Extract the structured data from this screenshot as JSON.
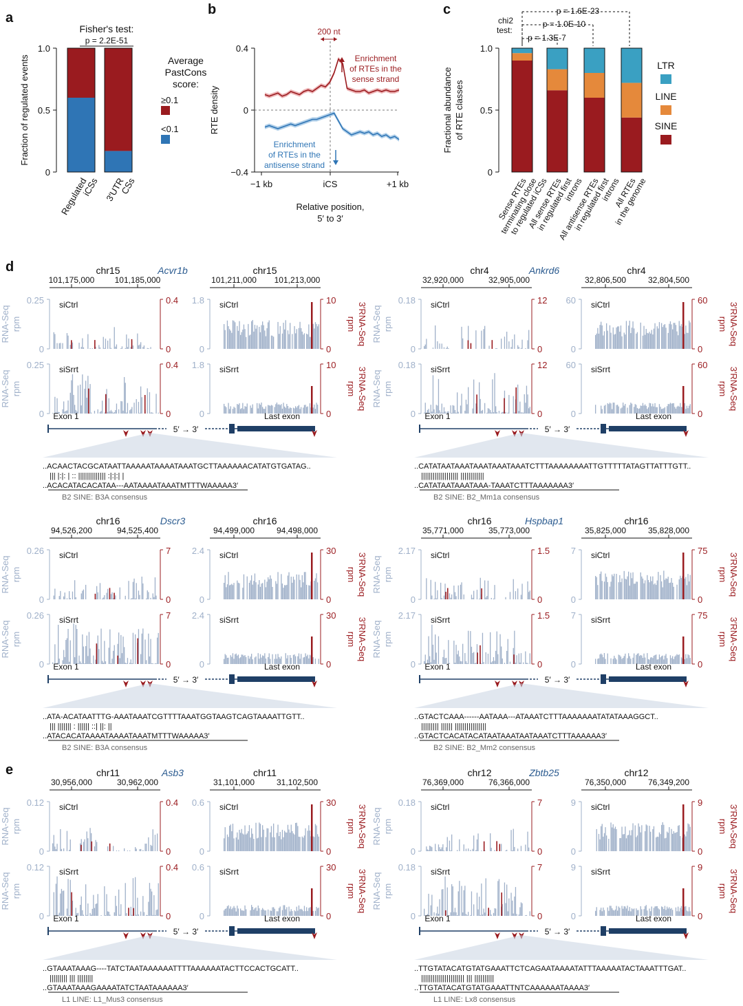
{
  "colors": {
    "red": "#9a1b1f",
    "blue": "#2f75b5",
    "grayblue": "#9fb0c9",
    "teal": "#3aa0c2",
    "orange": "#e5893b",
    "navy": "#1f3f66",
    "pink": "#f4b8b8",
    "redband": "#e8a1a4",
    "blueband": "#9cc3e4"
  },
  "panel_a": {
    "letter": "a",
    "test_title": "Fisher's test:",
    "p_value": "p = 2.2E-51",
    "chart_data": {
      "type": "bar",
      "stacked": true,
      "categories": [
        "Regulated iCSs",
        "3′UTR CSs"
      ],
      "category_lines": [
        [
          "Regulated",
          "iCSs"
        ],
        [
          "3′UTR",
          "CSs"
        ]
      ],
      "series": [
        {
          "name": "<0.1",
          "values": [
            0.6,
            0.17
          ]
        },
        {
          "name": "≥0.1",
          "values": [
            0.4,
            0.83
          ]
        }
      ],
      "ylabel": "Fraction of regulated events",
      "ylim": [
        0,
        1
      ],
      "yticks": [
        "0",
        "0.5",
        "1.0"
      ]
    },
    "legend_title": [
      "Average",
      "PastCons",
      "score:"
    ],
    "legend": [
      "≥0.1",
      "<0.1"
    ]
  },
  "panel_b": {
    "letter": "b",
    "chart_data": {
      "type": "line",
      "ylabel": "RTE density",
      "xlabel": [
        "Relative position,",
        "5′ to 3′"
      ],
      "xticks": [
        "−1 kb",
        "iCS",
        "+1 kb"
      ],
      "yticks": [
        "0.4",
        "0",
        "−0.4"
      ],
      "ylim": [
        -0.4,
        0.4
      ],
      "series": [
        {
          "values": [
            0.1,
            0.09,
            0.1,
            0.11,
            0.09,
            0.1,
            0.12,
            0.11,
            0.1,
            0.12,
            0.13,
            0.12,
            0.14,
            0.16,
            0.15,
            0.18,
            0.24,
            0.33,
            0.3,
            0.14,
            0.13,
            0.12,
            0.12,
            0.13,
            0.11,
            0.12,
            0.13,
            0.12,
            0.13,
            0.12,
            0.12,
            0.13
          ]
        },
        {
          "values": [
            -0.11,
            -0.1,
            -0.11,
            -0.12,
            -0.11,
            -0.1,
            -0.09,
            -0.1,
            -0.09,
            -0.08,
            -0.07,
            -0.06,
            -0.06,
            -0.05,
            -0.04,
            -0.03,
            -0.02,
            -0.07,
            -0.12,
            -0.14,
            -0.16,
            -0.15,
            -0.14,
            -0.15,
            -0.14,
            -0.16,
            -0.15,
            -0.17,
            -0.16,
            -0.18,
            -0.17,
            -0.19
          ]
        }
      ]
    },
    "label_200nt": "200 nt",
    "sense": [
      "Enrichment",
      "of RTEs in the",
      "sense strand"
    ],
    "antisense": [
      "Enrichment",
      "of RTEs in the",
      "antisense strand"
    ]
  },
  "panel_c": {
    "letter": "c",
    "chi2": [
      "chi2",
      "test:"
    ],
    "pvals": [
      "p = 1.6E-23",
      "p = 1.0E-10",
      "p = 1.3E-7"
    ],
    "chart_data": {
      "type": "bar",
      "stacked": true,
      "categories": [
        "Sense RTEs terminating close to regulated iCSs",
        "All sense RTEs in regulated first introns",
        "All antisense RTEs in regulated first introns",
        "All RTEs in the genome"
      ],
      "category_lines": [
        [
          "Sense RTEs",
          "terminating close",
          "to regulated iCSs"
        ],
        [
          "All sense RTEs",
          "in regulated first",
          "introns"
        ],
        [
          "All antisense RTEs",
          "in regulated first",
          "introns"
        ],
        [
          "All RTEs",
          "in the genome"
        ]
      ],
      "series": [
        {
          "name": "SINE",
          "values": [
            0.9,
            0.66,
            0.6,
            0.44
          ]
        },
        {
          "name": "LINE",
          "values": [
            0.06,
            0.17,
            0.2,
            0.28
          ]
        },
        {
          "name": "LTR",
          "values": [
            0.04,
            0.17,
            0.2,
            0.28
          ]
        }
      ],
      "ylabel": [
        "Fractional abundance",
        "of RTE classes"
      ],
      "ylim": [
        0,
        1
      ],
      "yticks": [
        "0",
        "0.5",
        "1.0"
      ]
    },
    "legend": [
      "LTR",
      "LINE",
      "SINE"
    ]
  },
  "labels": {
    "siCtrl": "siCtrl",
    "siSrrt": "siSrrt",
    "rna": [
      "RNA-Seq",
      "rpm"
    ],
    "rna3": [
      "3′RNA-Seq",
      "rpm"
    ],
    "exon1": "Exon 1",
    "last_exon": "Last exon",
    "arrow": "5′ → 3′",
    "three_prime": "3′"
  },
  "letters": {
    "d": "d",
    "e": "e"
  },
  "genes": [
    {
      "name": "Acvr1b",
      "chr_left": "chr15",
      "chr_right": "chr15",
      "ticks_left": [
        "101,175,000",
        "101,185,000"
      ],
      "ticks_right": [
        "101,211,000",
        "101,213,000"
      ],
      "y_rna_left": "0.25",
      "y_rna_left_mid": "0.25",
      "y_3_left": "0.4",
      "y_rna_right": "1.8",
      "y_3_right": "10",
      "seq1": "..ACAACTACGCATAATTAAAAATAAAATAAATGCTTAAAAAACATATGTGATAG..",
      "seq2": "||| |:|: |  :: |||||||||||||| :|:|:| |",
      "seq3": "..ACACATACACATAA---AATAAAATAAATMTTTWAAAAA3′",
      "consensus": "B2 SINE: B3A consensus"
    },
    {
      "name": "Ankrd6",
      "chr_left": "chr4",
      "chr_right": "chr4",
      "ticks_left": [
        "32,920,000",
        "32,905,000"
      ],
      "ticks_right": [
        "32,806,500",
        "32,804,500"
      ],
      "y_rna_left": "0.18",
      "y_3_left": "12",
      "y_rna_right": "60",
      "y_3_right": "60",
      "seq1": "..CATATAATAAATAAATAAATAAATCTTTAAAAAAAATTGTTTTTATAGTTATTTGTT..",
      "seq2": "||||||||||||||||||| ||||||||||||",
      "seq3": "..CATATAATAAATAAA-TAAATCTTTAAAAAAA3′",
      "consensus": "B2 SINE: B2_Mm1a consensus"
    },
    {
      "name": "Dscr3",
      "chr_left": "chr16",
      "chr_right": "chr16",
      "ticks_left": [
        "94,526,200",
        "94,525,400"
      ],
      "ticks_right": [
        "94,499,000",
        "94,498,000"
      ],
      "y_rna_left": "0.26",
      "y_3_left": "7",
      "y_rna_right": "2.4",
      "y_3_right": "30",
      "seq1": "..ATA-ACATAATTTG-AAATAAATCGTTTTAAATGGTAAGTCAGTAAAATTGTT..",
      "seq2": "||| |||||||  :  |||||| ::| ||: ||",
      "seq3": "..ATACACATAAAATAAAATAAATMTTTWAAAAA3′",
      "consensus": "B2 SINE: B3A consensus"
    },
    {
      "name": "Hspbap1",
      "chr_left": "chr16",
      "chr_right": "chr16",
      "ticks_left": [
        "35,771,000",
        "35,773,000"
      ],
      "ticks_right": [
        "35,825,000",
        "35,828,000"
      ],
      "y_rna_left": "2.17",
      "y_3_left": "1.5",
      "y_rna_right": "7",
      "y_3_right": "75",
      "seq1": "..GTACTCAAA------AATAAA---ATAAATCTTTAAAAAAATATATAAAGGCT..",
      "seq2": "||||||||| |||||| ||||||||||||||||",
      "seq3": "..GTACTCACATACATAATAAATAATAAATCTTTAAAAAA3′",
      "consensus": "B2 SINE: B2_Mm2 consensus"
    },
    {
      "name": "Asb3",
      "chr_left": "chr11",
      "chr_right": "chr11",
      "ticks_left": [
        "30,956,000",
        "30,962,000"
      ],
      "ticks_right": [
        "31,101,000",
        "31,102,500"
      ],
      "y_rna_left": "0.12",
      "y_3_left": "0.4",
      "y_rna_right": "0.6",
      "y_3_right": "30",
      "seq1": "..GTAAATAAAG----TATCTAATAAAAAATTTTAAAAAATACTTCCACTGCATT..",
      "seq2": "|||||||||  ||| ||||||||",
      "seq3": "..GTAAATAAAGAAAATATCTAATAAAAAA3′",
      "consensus": "L1 LINE: L1_Mus3 consensus"
    },
    {
      "name": "Zbtb25",
      "chr_left": "chr12",
      "chr_right": "chr12",
      "ticks_left": [
        "76,369,000",
        "76,366,000"
      ],
      "ticks_right": [
        "76,350,000",
        "76,349,200"
      ],
      "y_rna_left": "0.18",
      "y_3_left": "7",
      "y_rna_right": "9",
      "y_3_right": "9",
      "seq1": "..TTGTATACATGTATGAAATTCTCAGAATAAAATATTTAAAAATACTAAATTTGAT..",
      "seq2": "|||||||||||||||||||||| ||| ||||||||||",
      "seq3": "..TTGTATACATGTATGAAATTNTCAAAAAATAAAA3′",
      "consensus": "L1 LINE: Lx8 consensus"
    }
  ]
}
